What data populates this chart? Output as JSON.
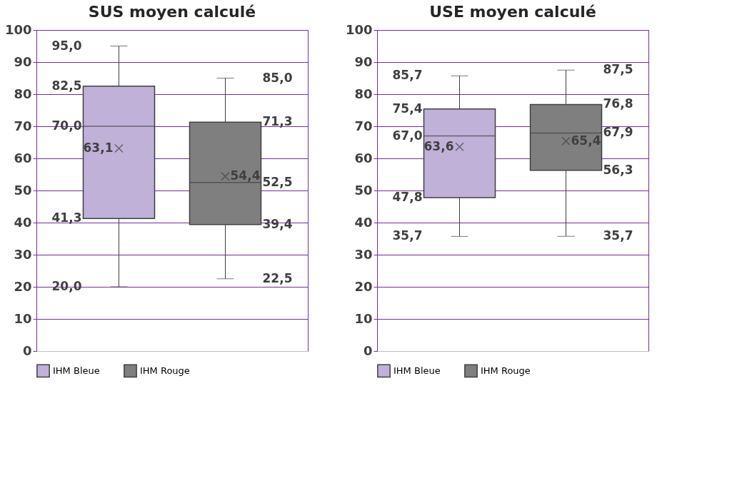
{
  "chart_data": [
    {
      "type": "box",
      "title": "SUS moyen calculé",
      "categories": [
        null
      ],
      "series": [
        {
          "name": "IHM Bleue",
          "color": "#c0b1d9",
          "boxes": [
            {
              "low": 20.0,
              "q1": 41.3,
              "median": 70.0,
              "q3": 82.5,
              "high": 95.0,
              "mean": 63.1
            }
          ],
          "value_labels": [
            [
              "20,0",
              "41,3",
              "70,0",
              "82,5",
              "95,0",
              "63,1"
            ]
          ]
        },
        {
          "name": "IHM Rouge",
          "color": "#7f7f7f",
          "boxes": [
            {
              "low": 22.5,
              "q1": 39.4,
              "median": 52.5,
              "q3": 71.3,
              "high": 85.0,
              "mean": 54.4
            }
          ],
          "value_labels": [
            [
              "22,5",
              "39,4",
              "52,5",
              "71,3",
              "85,0",
              "54,4"
            ]
          ]
        }
      ],
      "ylim": [
        0,
        100
      ],
      "yticks": [
        0,
        10,
        20,
        30,
        40,
        50,
        60,
        70,
        80,
        90,
        100
      ],
      "grid": "y",
      "legend": "bottom",
      "data_labels": true,
      "tick_labels": "y"
    },
    {
      "type": "box",
      "title": "USE moyen calculé",
      "categories": [
        null
      ],
      "series": [
        {
          "name": "IHM Bleue",
          "color": "#c0b1d9",
          "boxes": [
            {
              "low": 35.7,
              "q1": 47.8,
              "median": 67.0,
              "q3": 75.4,
              "high": 85.7,
              "mean": 63.6
            }
          ],
          "value_labels": [
            [
              "35,7",
              "47,8",
              "67,0",
              "75,4",
              "85,7",
              "63,6"
            ]
          ]
        },
        {
          "name": "IHM Rouge",
          "color": "#7f7f7f",
          "boxes": [
            {
              "low": 35.7,
              "q1": 56.3,
              "median": 67.9,
              "q3": 76.8,
              "high": 87.5,
              "mean": 65.4
            }
          ],
          "value_labels": [
            [
              "35,7",
              "56,3",
              "67,9",
              "76,8",
              "87,5",
              "65,4"
            ]
          ]
        }
      ],
      "ylim": [
        0,
        100
      ],
      "yticks": [
        0,
        10,
        20,
        30,
        40,
        50,
        60,
        70,
        80,
        90,
        100
      ],
      "grid": "y",
      "legend": "bottom",
      "data_labels": true,
      "tick_labels": "y"
    }
  ]
}
